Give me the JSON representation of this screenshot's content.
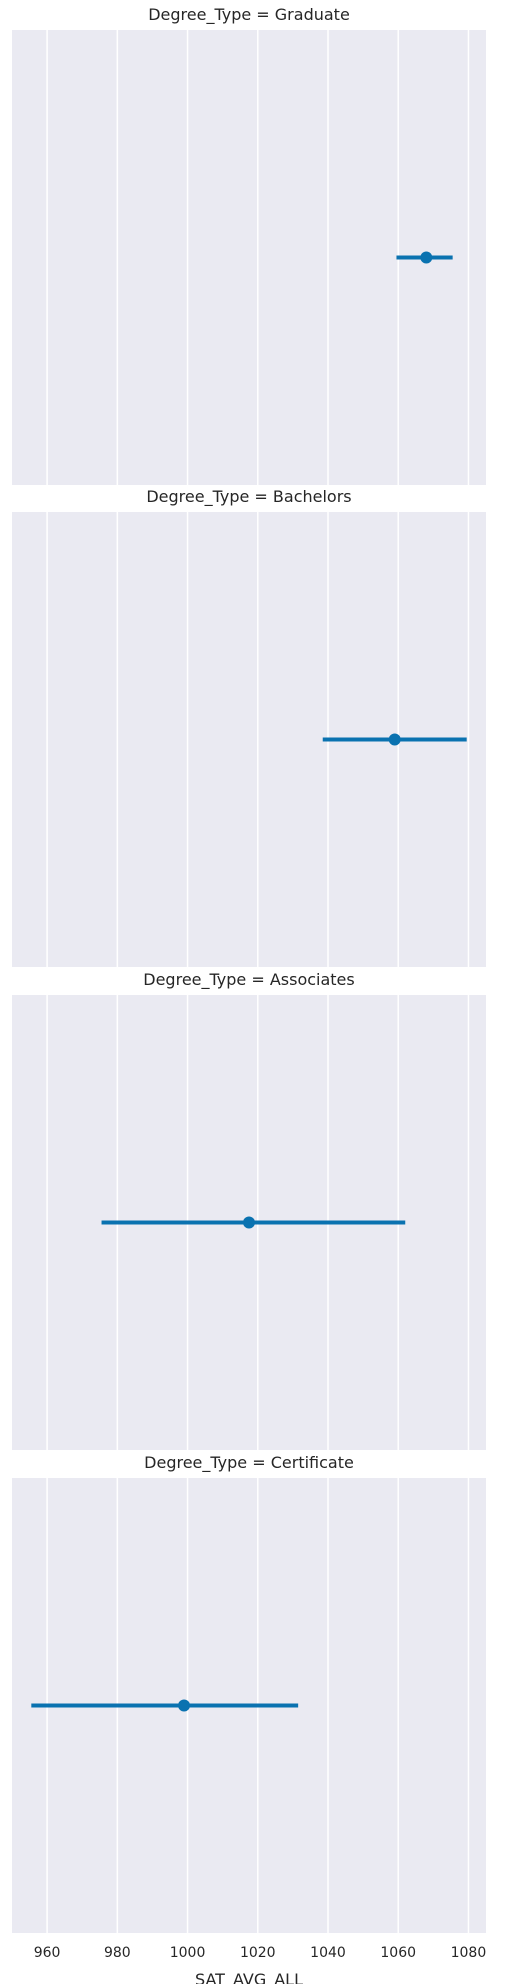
{
  "chart_data": {
    "type": "scatter",
    "style": {
      "panel_bg": "#EAEAF2",
      "grid_color": "#FFFFFF",
      "point_color": "#0A72B0",
      "text_color": "#262626"
    },
    "grid": true,
    "xlabel": "SAT_AVG_ALL",
    "xlim": [
      950,
      1085
    ],
    "xticks": [
      960,
      980,
      1000,
      1020,
      1040,
      1060,
      1080
    ],
    "xtick_labels": [
      "960",
      "980",
      "1000",
      "1020",
      "1040",
      "1060",
      "1080"
    ],
    "panels": [
      {
        "title": "Degree_Type = Graduate",
        "value": 1068,
        "ci": [
          1059.5,
          1075.5
        ]
      },
      {
        "title": "Degree_Type = Bachelors",
        "value": 1059,
        "ci": [
          1038.5,
          1079.5
        ]
      },
      {
        "title": "Degree_Type = Associates",
        "value": 1017.5,
        "ci": [
          975.5,
          1062
        ]
      },
      {
        "title": "Degree_Type = Certificate",
        "value": 999,
        "ci": [
          955.5,
          1031.5
        ]
      }
    ]
  }
}
